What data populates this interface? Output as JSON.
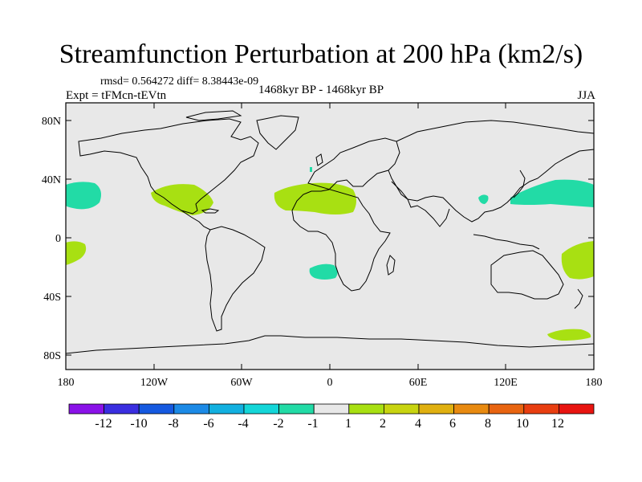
{
  "header": {
    "title": "Streamfunction Perturbation at 200 hPa (km2/s)",
    "stats": "rmsd= 0.564272 diff= 8.38443e-09",
    "experiment": "Expt = tFMcn-tEVtn",
    "period": "1468kyr BP - 1468kyr BP",
    "season": "JJA"
  },
  "axes": {
    "lat_labels": [
      "80N",
      "40N",
      "0",
      "40S",
      "80S"
    ],
    "lon_labels": [
      "180",
      "120W",
      "60W",
      "0",
      "60E",
      "120E",
      "180"
    ]
  },
  "colorbar": {
    "labels": [
      "-12",
      "-10",
      "-8",
      "-6",
      "-4",
      "-2",
      "-1",
      "1",
      "2",
      "4",
      "6",
      "8",
      "10",
      "12"
    ],
    "colors": [
      "#8a12e8",
      "#3a2ee0",
      "#1559e0",
      "#1c8ae6",
      "#12b0e0",
      "#14d6d8",
      "#22dba6",
      "#e8e8e8",
      "#a8e012",
      "#c8d410",
      "#e0b010",
      "#e88a10",
      "#e86410",
      "#e83e10",
      "#e81410"
    ]
  },
  "map": {
    "background": "#e8e8e8",
    "anomaly_colors": {
      "negative_1_2": "#22dba6",
      "positive_1_2": "#a8e012"
    }
  }
}
